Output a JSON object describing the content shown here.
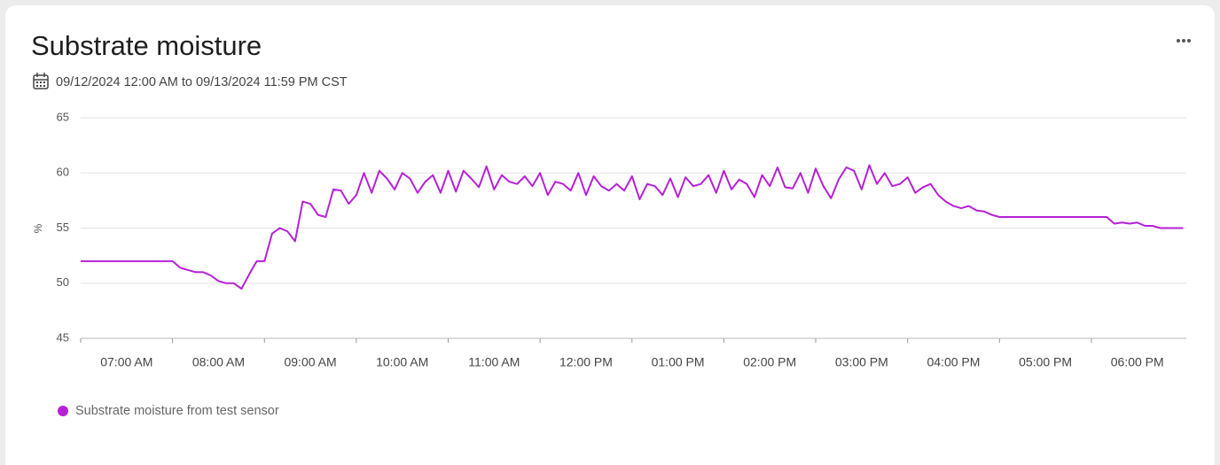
{
  "chart_data": {
    "type": "line",
    "title": "Substrate moisture",
    "subtitle": "09/12/2024 12:00 AM to 09/13/2024 11:59 PM CST",
    "y_label": "%",
    "x": [
      420,
      425,
      430,
      435,
      440,
      445,
      450,
      455,
      460,
      465,
      470,
      475,
      480,
      485,
      490,
      495,
      500,
      505,
      510,
      515,
      520,
      525,
      530,
      535,
      540,
      545,
      550,
      555,
      560,
      565,
      570,
      575,
      580,
      585,
      590,
      595,
      600,
      605,
      610,
      615,
      620,
      625,
      630,
      635,
      640,
      645,
      650,
      655,
      660,
      665,
      670,
      675,
      680,
      685,
      690,
      695,
      700,
      705,
      710,
      715,
      720,
      725,
      730,
      735,
      740,
      745,
      750,
      755,
      760,
      765,
      770,
      775,
      780,
      785,
      790,
      795,
      800,
      805,
      810,
      815,
      820,
      825,
      830,
      835,
      840,
      845,
      850,
      855,
      860,
      865,
      870,
      875,
      880,
      885,
      890,
      895,
      900,
      905,
      910,
      915,
      920,
      925,
      930,
      935,
      940,
      945,
      950,
      955,
      960,
      965,
      970,
      975,
      980,
      985,
      990,
      995,
      1000,
      1005,
      1010,
      1015,
      1020,
      1025,
      1030,
      1035,
      1040,
      1045,
      1050,
      1055,
      1060,
      1065,
      1070,
      1075,
      1080,
      1085,
      1090,
      1095,
      1100,
      1105,
      1110,
      1115,
      1120,
      1125,
      1130,
      1135,
      1140
    ],
    "series": [
      {
        "name": "Substrate moisture from test sensor",
        "color": "#b620d6",
        "values": [
          52,
          52,
          52,
          52,
          52,
          52,
          52,
          52,
          52,
          52,
          52,
          52,
          52,
          51.4,
          51.2,
          51,
          51,
          50.7,
          50.2,
          50,
          50,
          49.5,
          50.8,
          52,
          52,
          54.5,
          55,
          54.7,
          53.8,
          57.4,
          57.2,
          56.2,
          56,
          58.5,
          58.4,
          57.2,
          58,
          60,
          58.2,
          60.2,
          59.5,
          58.5,
          60,
          59.5,
          58.2,
          59.2,
          59.8,
          58.2,
          60.2,
          58.3,
          60.2,
          59.5,
          58.7,
          60.6,
          58.5,
          59.8,
          59.2,
          59,
          59.7,
          58.8,
          60,
          58,
          59.2,
          59,
          58.4,
          60,
          58,
          59.7,
          58.8,
          58.4,
          59,
          58.4,
          59.7,
          57.6,
          59,
          58.8,
          58,
          59.5,
          57.8,
          59.6,
          58.8,
          59,
          59.8,
          58.2,
          60.2,
          58.5,
          59.4,
          59,
          57.8,
          59.8,
          58.8,
          60.5,
          58.7,
          58.6,
          60,
          58.2,
          60.4,
          58.8,
          57.7,
          59.4,
          60.5,
          60.2,
          58.5,
          60.7,
          59,
          60,
          58.8,
          59,
          59.6,
          58.2,
          58.7,
          59,
          58,
          57.4,
          57,
          56.8,
          57,
          56.6,
          56.5,
          56.2,
          56,
          56,
          56,
          56,
          56,
          56,
          56,
          56,
          56,
          56,
          56,
          56,
          56,
          56,
          56,
          55.4,
          55.5,
          55.4,
          55.5,
          55.2,
          55.2,
          55,
          55,
          55,
          55
        ]
      }
    ],
    "xlim": [
      420,
      1142
    ],
    "xticks": [
      {
        "value": 420,
        "label": "07:00 AM"
      },
      {
        "value": 480,
        "label": "08:00 AM"
      },
      {
        "value": 540,
        "label": "09:00 AM"
      },
      {
        "value": 600,
        "label": "10:00 AM"
      },
      {
        "value": 660,
        "label": "11:00 AM"
      },
      {
        "value": 720,
        "label": "12:00 PM"
      },
      {
        "value": 780,
        "label": "01:00 PM"
      },
      {
        "value": 840,
        "label": "02:00 PM"
      },
      {
        "value": 900,
        "label": "03:00 PM"
      },
      {
        "value": 960,
        "label": "04:00 PM"
      },
      {
        "value": 1020,
        "label": "05:00 PM"
      },
      {
        "value": 1080,
        "label": "06:00 PM"
      }
    ],
    "ylim": [
      45,
      65
    ],
    "yticks": [
      45,
      50,
      55,
      60,
      65
    ],
    "grid": true
  }
}
